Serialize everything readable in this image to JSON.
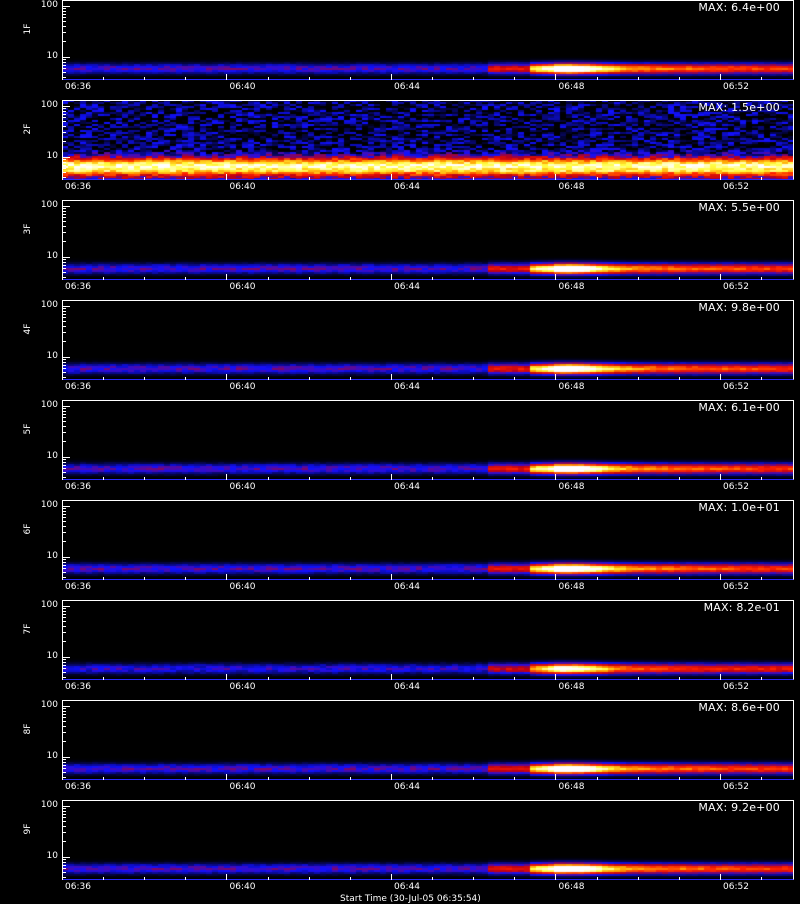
{
  "chart_data": {
    "type": "heatmap",
    "x_axis": {
      "tick_labels": [
        "06:36",
        "06:40",
        "06:44",
        "06:48",
        "06:52"
      ],
      "tick_positions_minutes": [
        0,
        4,
        8,
        12,
        16
      ],
      "range_minutes": [
        0,
        17.8
      ],
      "label": "Start Time (30-Jul-05 06:35:54)"
    },
    "y_axis": {
      "scale": "log",
      "tick_labels": [
        "10",
        "100"
      ],
      "tick_values": [
        10,
        100
      ],
      "range": [
        3.5,
        130
      ]
    },
    "colormap": [
      "#000000",
      "#1010ff",
      "#c00010",
      "#ff2000",
      "#ffa000",
      "#ffff40",
      "#ffffff"
    ],
    "panels": [
      {
        "name": "1F",
        "max_label": "MAX: 6.4e+00",
        "max": 6.4
      },
      {
        "name": "2F",
        "max_label": "MAX: 1.5e+00",
        "max": 1.5
      },
      {
        "name": "3F",
        "max_label": "MAX: 5.5e+00",
        "max": 5.5
      },
      {
        "name": "4F",
        "max_label": "MAX: 9.8e+00",
        "max": 9.8
      },
      {
        "name": "5F",
        "max_label": "MAX: 6.1e+00",
        "max": 6.1
      },
      {
        "name": "6F",
        "max_label": "MAX: 1.0e+01",
        "max": 10.0
      },
      {
        "name": "7F",
        "max_label": "MAX: 8.2e-01",
        "max": 0.82
      },
      {
        "name": "8F",
        "max_label": "MAX: 8.6e+00",
        "max": 8.6
      },
      {
        "name": "9F",
        "max_label": "MAX: 9.2e+00",
        "max": 9.2
      }
    ]
  }
}
